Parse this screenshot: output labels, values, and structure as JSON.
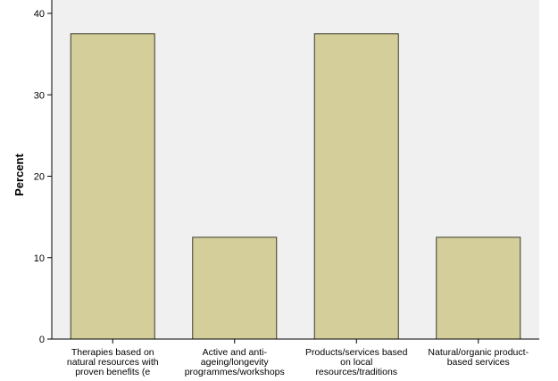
{
  "chart_data": {
    "type": "bar",
    "categories": [
      [
        "Therapies based on",
        "natural resources with",
        "proven benefits (e"
      ],
      [
        "Active and anti-",
        "ageing/longevity",
        "programmes/workshops"
      ],
      [
        "Products/services based",
        "on local",
        "resources/traditions"
      ],
      [
        "Natural/organic product-",
        "based services"
      ]
    ],
    "values": [
      37.5,
      12.5,
      37.5,
      12.5
    ],
    "ylabel": "Percent",
    "xlabel": "",
    "ylim": [
      0,
      40
    ],
    "yticks": [
      0,
      10,
      20,
      30,
      40
    ],
    "grid": false,
    "colors": {
      "bar_fill": "#d4cf9a",
      "bar_stroke": "#3a3a2a",
      "plot_bg": "#f0f0f0",
      "axis": "#000000"
    }
  }
}
